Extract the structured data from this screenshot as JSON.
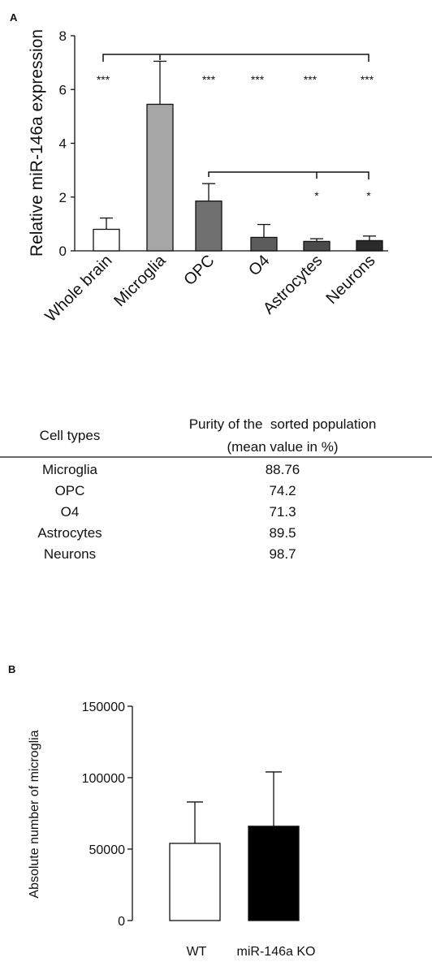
{
  "panel_a_label": "A",
  "panel_b_label": "B",
  "chart_data": [
    {
      "type": "bar",
      "panel": "A",
      "ylabel": "Relative miR-146a expression",
      "categories": [
        "Whole brain",
        "Microglia",
        "OPC",
        "O4",
        "Astrocytes",
        "Neurons"
      ],
      "values": [
        0.8,
        5.45,
        1.85,
        0.5,
        0.35,
        0.38
      ],
      "errors": [
        0.42,
        1.6,
        0.65,
        0.48,
        0.1,
        0.17
      ],
      "bar_colors": [
        "#ffffff",
        "#a6a6a6",
        "#707070",
        "#5c5c5c",
        "#4a4a4a",
        "#2a2a2a"
      ],
      "ylim": [
        0,
        8
      ],
      "yticks": [
        "0",
        "2",
        "4",
        "6",
        "8"
      ],
      "significance_labels": [
        "***",
        "***",
        "***",
        "***",
        "***",
        "*",
        "*"
      ],
      "comparisons": [
        {
          "from": "Whole brain",
          "to": "Neurons",
          "reference": "Microglia",
          "stars": [
            "***",
            "***",
            "***",
            "***",
            "***"
          ]
        },
        {
          "from": "OPC",
          "to": "Neurons",
          "reference": "OPC",
          "stars": [
            "*",
            "*"
          ]
        }
      ],
      "grid": false
    },
    {
      "type": "table",
      "headers": [
        "Cell types",
        "Purity of the  sorted population",
        "(mean value in %)"
      ],
      "rows": [
        [
          "Microglia",
          "88.76"
        ],
        [
          "OPC",
          "74.2"
        ],
        [
          "O4",
          "71.3"
        ],
        [
          "Astrocytes",
          "89.5"
        ],
        [
          "Neurons",
          "98.7"
        ]
      ]
    },
    {
      "type": "bar",
      "panel": "B",
      "ylabel": "Absolute number of microglia",
      "categories": [
        "WT",
        "miR-146a KO"
      ],
      "values": [
        54000,
        66000
      ],
      "errors": [
        29000,
        38000
      ],
      "bar_colors": [
        "#ffffff",
        "#000000"
      ],
      "ylim": [
        0,
        150000
      ],
      "yticks": [
        "0",
        "50000",
        "100000",
        "150000"
      ],
      "grid": false
    }
  ]
}
